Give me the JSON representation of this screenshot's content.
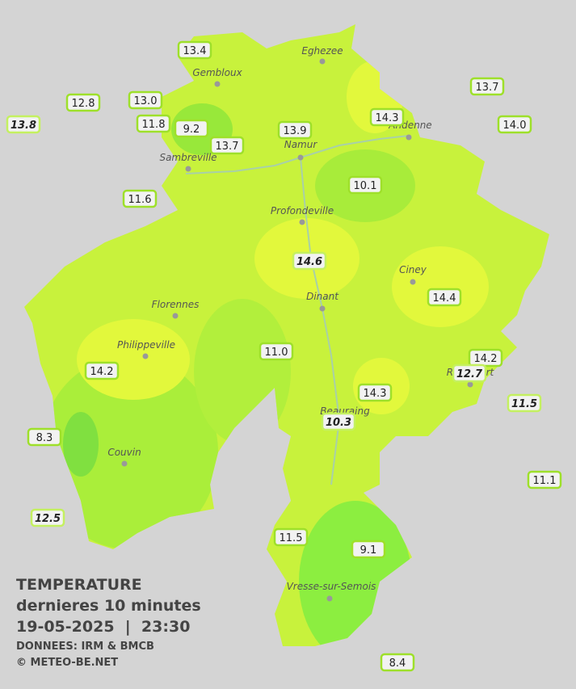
{
  "header": {
    "title": "TEMPERATURE",
    "subtitle": "dernieres 10 minutes",
    "datetime": "19-05-2025  |  23:30",
    "source": "DONNEES: IRM & BMCB",
    "credit": "© METEO-BE.NET"
  },
  "cities": [
    {
      "label": "Eghezee"
    },
    {
      "label": "Gembloux"
    },
    {
      "label": "Andenne"
    },
    {
      "label": "Namur"
    },
    {
      "label": "Sambreville"
    },
    {
      "label": "Profondeville"
    },
    {
      "label": "Ciney"
    },
    {
      "label": "Florennes"
    },
    {
      "label": "Dinant"
    },
    {
      "label": "Philippeville"
    },
    {
      "label": "Rochefort"
    },
    {
      "label": "Beauraing"
    },
    {
      "label": "Couvin"
    },
    {
      "label": "Vresse-sur-Semois"
    }
  ],
  "stations": [
    {
      "value": "13.4"
    },
    {
      "value": "12.8"
    },
    {
      "value": "13.0"
    },
    {
      "value": "13.8"
    },
    {
      "value": "11.8"
    },
    {
      "value": "9.2"
    },
    {
      "value": "13.7"
    },
    {
      "value": "13.9"
    },
    {
      "value": "14.3"
    },
    {
      "value": "13.7"
    },
    {
      "value": "14.0"
    },
    {
      "value": "11.6"
    },
    {
      "value": "10.1"
    },
    {
      "value": "14.6"
    },
    {
      "value": "14.4"
    },
    {
      "value": "11.0"
    },
    {
      "value": "14.2"
    },
    {
      "value": "14.2"
    },
    {
      "value": "12.7"
    },
    {
      "value": "11.5"
    },
    {
      "value": "14.3"
    },
    {
      "value": "10.3"
    },
    {
      "value": "8.3"
    },
    {
      "value": "11.1"
    },
    {
      "value": "12.5"
    },
    {
      "value": "11.5"
    },
    {
      "value": "9.1"
    },
    {
      "value": "8.4"
    }
  ]
}
